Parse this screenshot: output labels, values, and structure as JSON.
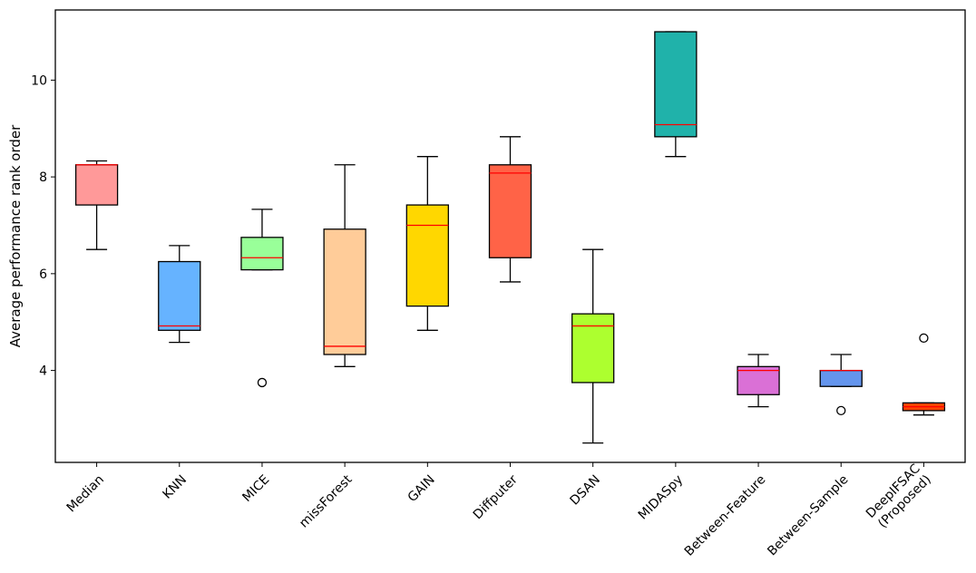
{
  "chart_data": {
    "type": "box",
    "title": "",
    "xlabel": "",
    "ylabel": "Average performance rank order",
    "ylim": [
      2.1,
      11.45
    ],
    "yticks": [
      4,
      6,
      8,
      10
    ],
    "grid": false,
    "categories": [
      "Median",
      "KNN",
      "MICE",
      "missForest",
      "GAIN",
      "Diffputer",
      "DSAN",
      "MIDASpy",
      "Between-Feature",
      "Between-Sample",
      "DeepIFSAC\n(Proposed)"
    ],
    "boxes": [
      {
        "whisker_low": 6.5,
        "q1": 7.42,
        "median": 8.25,
        "q3": 8.25,
        "whisker_high": 8.33,
        "outliers": [],
        "color": "#ff9999"
      },
      {
        "whisker_low": 4.58,
        "q1": 4.83,
        "median": 4.92,
        "q3": 6.25,
        "whisker_high": 6.58,
        "outliers": [],
        "color": "#66b3ff"
      },
      {
        "whisker_low": 6.08,
        "q1": 6.08,
        "median": 6.33,
        "q3": 6.75,
        "whisker_high": 7.33,
        "outliers": [
          3.75
        ],
        "color": "#99ff99"
      },
      {
        "whisker_low": 4.08,
        "q1": 4.33,
        "median": 4.5,
        "q3": 6.92,
        "whisker_high": 8.25,
        "outliers": [],
        "color": "#ffcc99"
      },
      {
        "whisker_low": 4.83,
        "q1": 5.33,
        "median": 7.0,
        "q3": 7.42,
        "whisker_high": 8.42,
        "outliers": [],
        "color": "#ffd700"
      },
      {
        "whisker_low": 5.83,
        "q1": 6.33,
        "median": 8.08,
        "q3": 8.25,
        "whisker_high": 8.83,
        "outliers": [],
        "color": "#ff6347"
      },
      {
        "whisker_low": 2.5,
        "q1": 3.75,
        "median": 4.92,
        "q3": 5.17,
        "whisker_high": 6.5,
        "outliers": [],
        "color": "#adff2f"
      },
      {
        "whisker_low": 8.42,
        "q1": 8.83,
        "median": 9.08,
        "q3": 11.0,
        "whisker_high": 11.0,
        "outliers": [],
        "color": "#20b2aa"
      },
      {
        "whisker_low": 3.25,
        "q1": 3.5,
        "median": 4.0,
        "q3": 4.08,
        "whisker_high": 4.33,
        "outliers": [],
        "color": "#da70d6"
      },
      {
        "whisker_low": 3.67,
        "q1": 3.67,
        "median": 4.0,
        "q3": 4.0,
        "whisker_high": 4.33,
        "outliers": [
          3.17
        ],
        "color": "#6495ed"
      },
      {
        "whisker_low": 3.08,
        "q1": 3.17,
        "median": 3.25,
        "q3": 3.33,
        "whisker_high": 3.33,
        "outliers": [
          4.67
        ],
        "color": "#ff4500"
      }
    ],
    "median_color": "#ff0000"
  }
}
